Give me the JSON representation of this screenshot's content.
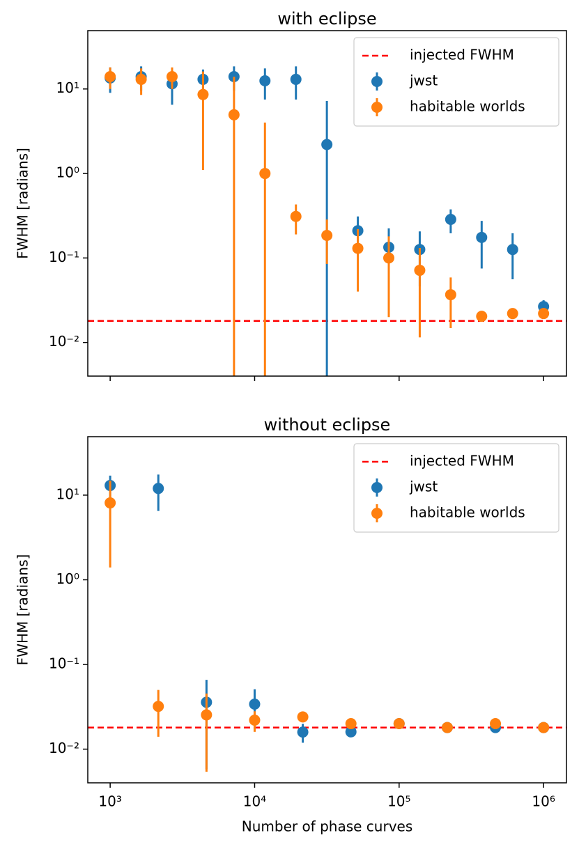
{
  "chart_data": [
    {
      "type": "scatter",
      "title": "with eclipse",
      "ylabel": "FWHM [radians]",
      "x_scale": "log",
      "y_scale": "log",
      "legend": "upper right",
      "xlim": [
        700,
        1440000
      ],
      "ylim": [
        0.004,
        49
      ],
      "xticks": [
        1000,
        10000,
        100000,
        1000000
      ],
      "show_xtick_labels": false,
      "yticks": [
        {
          "value": 0.01,
          "label": "10⁻²"
        },
        {
          "value": 0.1,
          "label": "10⁻¹"
        },
        {
          "value": 1,
          "label": "10⁰"
        },
        {
          "value": 10,
          "label": "10¹"
        }
      ],
      "x": [
        1000,
        1638.8,
        2682.7,
        4394,
        7196.9,
        11787.9,
        19307,
        31622.8,
        51794.7,
        84834.3,
        138949.5,
        227584.6,
        372759.4,
        610540.2,
        1000000
      ],
      "hline": {
        "name": "injected FWHM",
        "value": 0.018,
        "color": "#ff0000"
      },
      "series": [
        {
          "name": "jwst",
          "color": "#1f77b4",
          "values": [
            13.5,
            14,
            11.5,
            13,
            14,
            12.5,
            13,
            2.2,
            0.21,
            0.134,
            0.126,
            0.286,
            0.175,
            0.126,
            0.0266
          ],
          "errors": [
            4.5,
            4.5,
            5,
            4,
            4.5,
            5,
            5.5,
            5,
            0.1,
            0.09,
            0.08,
            0.09,
            0.1,
            0.07,
            0.005
          ]
        },
        {
          "name": "habitable worlds",
          "color": "#ff7f0e",
          "values": [
            14,
            13,
            14,
            8.6,
            4.95,
            1,
            0.31,
            0.185,
            0.13,
            0.1,
            0.0715,
            0.0368,
            0.0204,
            0.022,
            0.022
          ],
          "errors": [
            4,
            4.5,
            4,
            7.5,
            9,
            3,
            0.12,
            0.1,
            0.09,
            0.08,
            0.06,
            0.022,
            0.001,
            0.001,
            0.001
          ]
        }
      ]
    },
    {
      "type": "scatter",
      "title": "without eclipse",
      "ylabel": "FWHM [radians]",
      "xlabel": "Number of phase curves",
      "x_scale": "log",
      "y_scale": "log",
      "legend": "upper right",
      "xlim": [
        700,
        1440000
      ],
      "ylim": [
        0.004,
        49
      ],
      "xticks": [
        {
          "value": 1000,
          "label": "10³"
        },
        {
          "value": 10000,
          "label": "10⁴"
        },
        {
          "value": 100000,
          "label": "10⁵"
        },
        {
          "value": 1000000,
          "label": "10⁶"
        }
      ],
      "show_xtick_labels": true,
      "yticks": [
        {
          "value": 0.01,
          "label": "10⁻²"
        },
        {
          "value": 0.1,
          "label": "10⁻¹"
        },
        {
          "value": 1,
          "label": "10⁰"
        },
        {
          "value": 10,
          "label": "10¹"
        }
      ],
      "x": [
        1000,
        2154.4,
        4641.6,
        10000,
        21544.3,
        46415.9,
        100000,
        215443.5,
        464158.9,
        1000000
      ],
      "hline": {
        "name": "injected FWHM",
        "value": 0.018,
        "color": "#ff0000"
      },
      "series": [
        {
          "name": "jwst",
          "color": "#1f77b4",
          "values": [
            13,
            12,
            0.0358,
            0.034,
            0.0159,
            0.016,
            0.02,
            0.018,
            0.018,
            0.018
          ],
          "errors": [
            4,
            5.5,
            0.03,
            0.017,
            0.004,
            0.001,
            0.001,
            0.001,
            0.001,
            0.001
          ]
        },
        {
          "name": "habitable worlds",
          "color": "#ff7f0e",
          "values": [
            8.1,
            0.032,
            0.0254,
            0.022,
            0.024,
            0.02,
            0.02,
            0.018,
            0.02,
            0.018
          ],
          "errors": [
            6.7,
            0.018,
            0.02,
            0.006,
            0.002,
            0.002,
            0.001,
            0.001,
            0.001,
            0.001
          ]
        }
      ]
    }
  ]
}
